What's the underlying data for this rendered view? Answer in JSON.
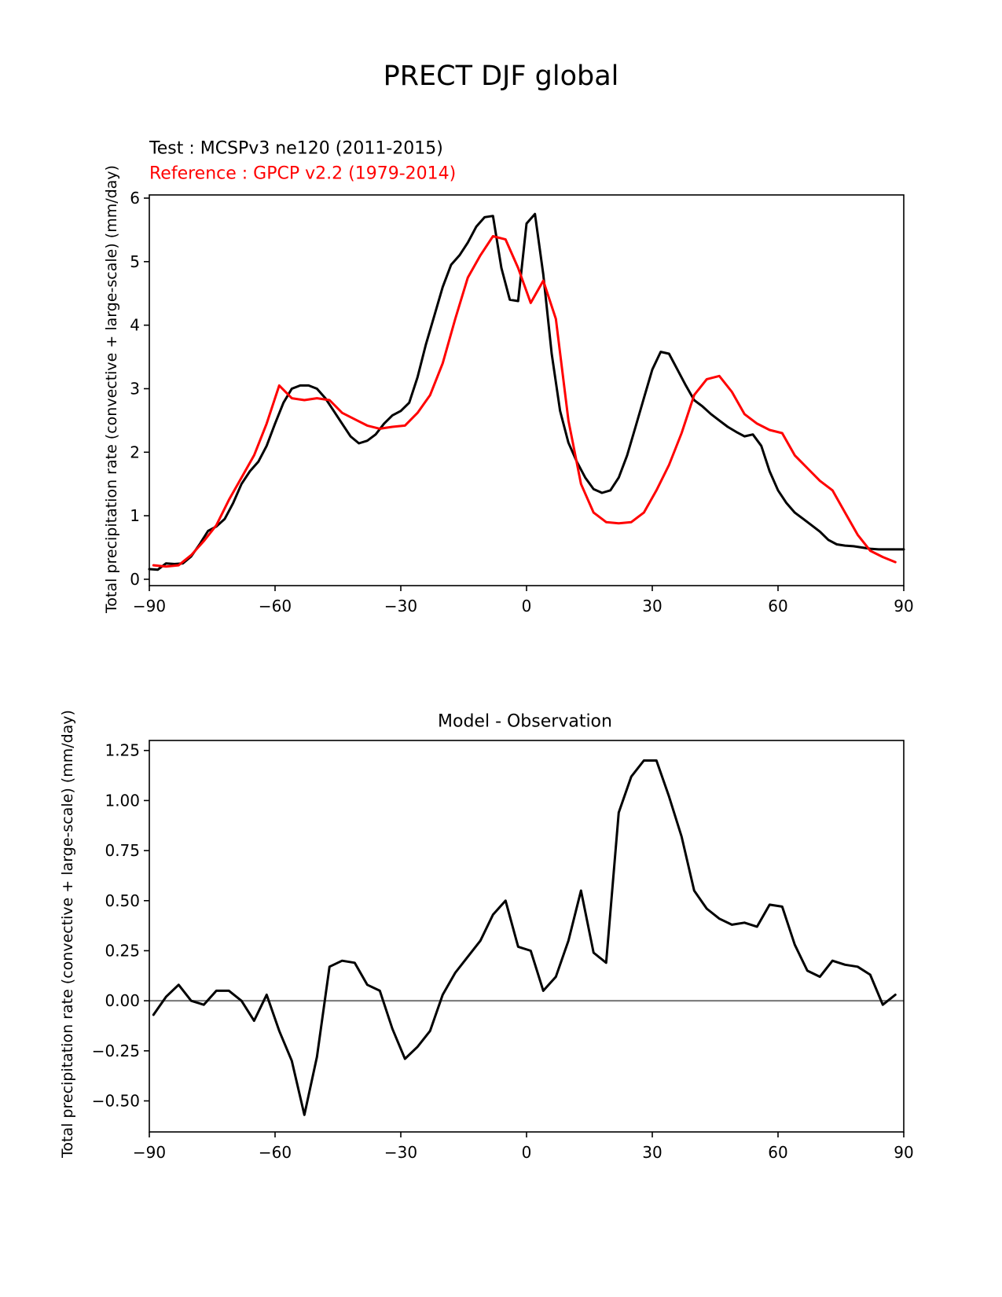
{
  "figure": {
    "suptitle": "PRECT DJF global"
  },
  "chart_data": [
    {
      "type": "line",
      "test_label": "Test : MCSPv3 ne120 (2011-2015)",
      "reference_label": "Reference : GPCP v2.2 (1979-2014)",
      "ylabel": "Total precipitation rate (convective + large-scale) (mm/day)",
      "xlim": [
        -90,
        90
      ],
      "ylim": [
        -0.1,
        6.05
      ],
      "xticks": [
        -90,
        -60,
        -30,
        0,
        30,
        60,
        90
      ],
      "xtick_labels": [
        "−90",
        "−60",
        "−30",
        "0",
        "30",
        "60",
        "90"
      ],
      "yticks": [
        0,
        1,
        2,
        3,
        4,
        5,
        6
      ],
      "ytick_labels": [
        "0",
        "1",
        "2",
        "3",
        "4",
        "5",
        "6"
      ],
      "grid": false,
      "series": [
        {
          "color": "#000000",
          "x": [
            -90,
            -88,
            -86,
            -84,
            -82,
            -80,
            -78,
            -76,
            -74,
            -72,
            -70,
            -68,
            -66,
            -64,
            -62,
            -60,
            -58,
            -56,
            -54,
            -52,
            -50,
            -48,
            -46,
            -44,
            -42,
            -40,
            -38,
            -36,
            -34,
            -32,
            -30,
            -28,
            -26,
            -24,
            -22,
            -20,
            -18,
            -16,
            -14,
            -12,
            -10,
            -8,
            -6,
            -4,
            -2,
            0,
            2,
            4,
            6,
            8,
            10,
            12,
            14,
            16,
            18,
            20,
            22,
            24,
            26,
            28,
            30,
            32,
            34,
            36,
            38,
            40,
            42,
            44,
            46,
            48,
            50,
            52,
            54,
            56,
            58,
            60,
            62,
            64,
            66,
            68,
            70,
            72,
            74,
            76,
            78,
            80,
            82,
            84,
            86,
            88,
            90
          ],
          "y": [
            0.16,
            0.15,
            0.25,
            0.24,
            0.25,
            0.36,
            0.55,
            0.76,
            0.83,
            0.95,
            1.2,
            1.5,
            1.7,
            1.85,
            2.1,
            2.45,
            2.78,
            3.0,
            3.05,
            3.05,
            3.0,
            2.85,
            2.65,
            2.45,
            2.25,
            2.14,
            2.18,
            2.28,
            2.45,
            2.58,
            2.65,
            2.78,
            3.18,
            3.7,
            4.15,
            4.6,
            4.95,
            5.1,
            5.3,
            5.55,
            5.7,
            5.72,
            4.9,
            4.4,
            4.38,
            5.6,
            5.75,
            4.8,
            3.55,
            2.65,
            2.15,
            1.85,
            1.6,
            1.42,
            1.36,
            1.4,
            1.6,
            1.95,
            2.4,
            2.85,
            3.3,
            3.58,
            3.55,
            3.3,
            3.05,
            2.82,
            2.72,
            2.6,
            2.5,
            2.4,
            2.32,
            2.25,
            2.28,
            2.1,
            1.7,
            1.4,
            1.2,
            1.05,
            0.95,
            0.85,
            0.75,
            0.62,
            0.55,
            0.53,
            0.52,
            0.5,
            0.48,
            0.47,
            0.47,
            0.47,
            0.47
          ]
        },
        {
          "color": "#ff0000",
          "x": [
            -89,
            -86,
            -83,
            -80,
            -77,
            -74,
            -71,
            -68,
            -65,
            -62,
            -59,
            -56,
            -53,
            -50,
            -47,
            -44,
            -41,
            -38,
            -35,
            -32,
            -29,
            -26,
            -23,
            -20,
            -17,
            -14,
            -11,
            -8,
            -5,
            -2,
            1,
            4,
            7,
            10,
            13,
            16,
            19,
            22,
            25,
            28,
            31,
            34,
            37,
            40,
            43,
            46,
            49,
            52,
            55,
            58,
            61,
            64,
            67,
            70,
            73,
            76,
            79,
            82,
            85,
            88
          ],
          "y": [
            0.22,
            0.2,
            0.22,
            0.38,
            0.6,
            0.85,
            1.25,
            1.6,
            1.95,
            2.45,
            3.05,
            2.85,
            2.82,
            2.85,
            2.82,
            2.62,
            2.52,
            2.42,
            2.37,
            2.4,
            2.42,
            2.62,
            2.9,
            3.4,
            4.1,
            4.75,
            5.1,
            5.4,
            5.35,
            4.9,
            4.35,
            4.7,
            4.1,
            2.5,
            1.5,
            1.05,
            0.9,
            0.88,
            0.9,
            1.05,
            1.4,
            1.8,
            2.3,
            2.9,
            3.15,
            3.2,
            2.95,
            2.6,
            2.45,
            2.35,
            2.3,
            1.95,
            1.75,
            1.55,
            1.4,
            1.05,
            0.7,
            0.45,
            0.35,
            0.27
          ]
        }
      ]
    },
    {
      "type": "line",
      "title": "Model - Observation",
      "ylabel": "Total precipitation rate (convective + large-scale) (mm/day)",
      "xlim": [
        -90,
        90
      ],
      "ylim": [
        -0.655,
        1.3
      ],
      "xticks": [
        -90,
        -60,
        -30,
        0,
        30,
        60,
        90
      ],
      "xtick_labels": [
        "−90",
        "−60",
        "−30",
        "0",
        "30",
        "60",
        "90"
      ],
      "yticks": [
        -0.5,
        -0.25,
        0.0,
        0.25,
        0.5,
        0.75,
        1.0,
        1.25
      ],
      "ytick_labels": [
        "−0.50",
        "−0.25",
        "0.00",
        "0.25",
        "0.50",
        "0.75",
        "1.00",
        "1.25"
      ],
      "zero_line_color": "#808080",
      "grid": false,
      "series": [
        {
          "color": "#000000",
          "x": [
            -89,
            -86,
            -83,
            -80,
            -77,
            -74,
            -71,
            -68,
            -65,
            -62,
            -59,
            -56,
            -53,
            -50,
            -47,
            -44,
            -41,
            -38,
            -35,
            -32,
            -29,
            -26,
            -23,
            -20,
            -17,
            -14,
            -11,
            -8,
            -5,
            -2,
            1,
            4,
            7,
            10,
            13,
            16,
            19,
            22,
            25,
            28,
            31,
            34,
            37,
            40,
            43,
            46,
            49,
            52,
            55,
            58,
            61,
            64,
            67,
            70,
            73,
            76,
            79,
            82,
            85,
            88
          ],
          "y": [
            -0.07,
            0.02,
            0.08,
            0.0,
            -0.02,
            0.05,
            0.05,
            0.0,
            -0.1,
            0.03,
            -0.15,
            -0.3,
            -0.57,
            -0.28,
            0.17,
            0.2,
            0.19,
            0.08,
            0.05,
            -0.14,
            -0.29,
            -0.23,
            -0.15,
            0.03,
            0.14,
            0.22,
            0.3,
            0.43,
            0.5,
            0.27,
            0.25,
            0.05,
            0.12,
            0.3,
            0.55,
            0.24,
            0.19,
            0.94,
            1.12,
            1.2,
            1.2,
            1.02,
            0.82,
            0.55,
            0.46,
            0.41,
            0.38,
            0.39,
            0.37,
            0.48,
            0.47,
            0.28,
            0.15,
            0.12,
            0.2,
            0.18,
            0.17,
            0.13,
            -0.02,
            0.03
          ]
        }
      ]
    }
  ]
}
